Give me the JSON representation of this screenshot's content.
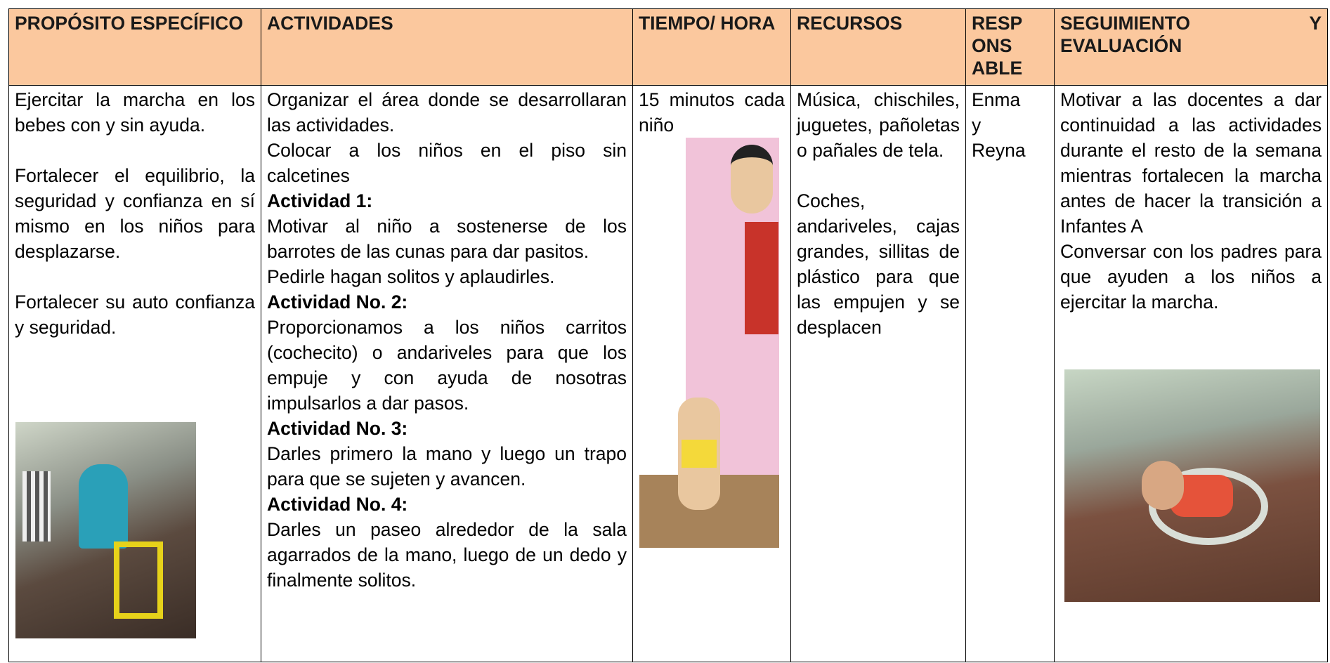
{
  "table": {
    "headers": [
      "PROPÓSITO ESPECÍFICO",
      "ACTIVIDADES",
      "TIEMPO/ HORA",
      "RECURSOS",
      "RESPONSABLE",
      "SEGUIMIENTO Y EVALUACIÓN"
    ],
    "purpose": [
      "Ejercitar la marcha en los bebes con y sin ayuda.",
      "Fortalecer el equilibrio, la seguridad y confianza en sí mismo en los niños para desplazarse.",
      "Fortalecer su auto confianza y seguridad."
    ],
    "activities": {
      "intro": [
        "Organizar el área donde se desarrollaran las actividades.",
        "Colocar a los niños en el piso sin calcetines"
      ],
      "steps": [
        {
          "heading": "Actividad 1:",
          "lines": [
            "Motivar al niño a sostenerse de los barrotes de las cunas para dar pasitos.",
            "Pedirle hagan solitos y aplaudirles."
          ]
        },
        {
          "heading": "Actividad No. 2:",
          "lines": [
            "Proporcionamos a los niños carritos (cochecito) o andariveles para que los empuje y con ayuda de nosotras impulsarlos a dar pasos."
          ]
        },
        {
          "heading": "Actividad No. 3:",
          "lines": [
            "Darles primero la mano y luego un trapo para que se sujeten y avancen."
          ]
        },
        {
          "heading": "Actividad No. 4:",
          "lines": [
            "Darles un paseo alrededor de la sala agarrados de la mano, luego de un dedo y finalmente solitos."
          ]
        }
      ]
    },
    "time": "15 minutos cada niño",
    "resources": [
      "Música, chischiles, juguetes, pañoletas o pañales de tela.",
      "Coches, andariveles, cajas grandes, sillitas de plástico para que las empujen y se desplacen"
    ],
    "responsible": "Enma y Reyna",
    "evaluation": [
      "Motivar a las docentes a dar continuidad a las actividades durante el resto de la semana mientras fortalecen la marcha antes de hacer la transición a Infantes A",
      "Conversar con los padres para que ayuden a los niños a ejercitar la marcha."
    ]
  }
}
